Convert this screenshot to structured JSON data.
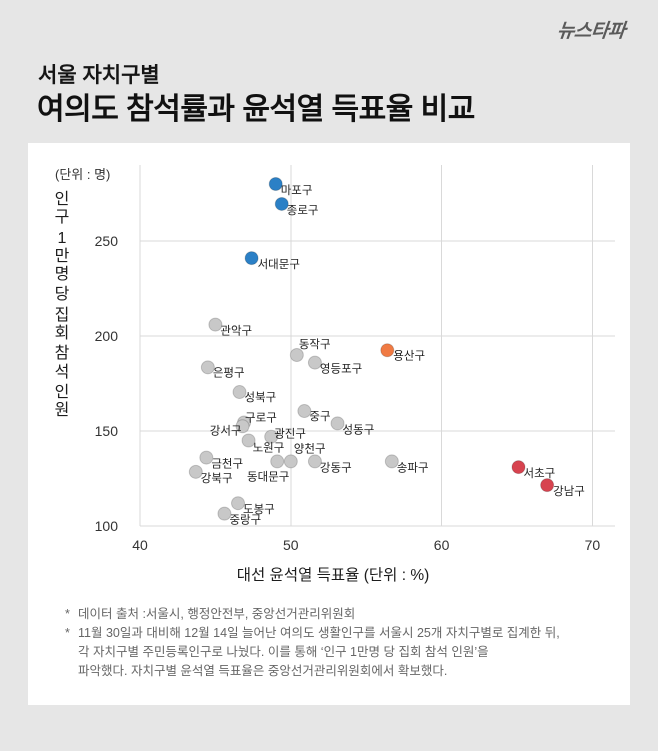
{
  "header": {
    "logo": "뉴스타파"
  },
  "chart_data": {
    "type": "scatter",
    "subtitle": "서울 자치구별",
    "title": "여의도 참석률과 윤석열 득표율 비교",
    "xlabel": "대선 윤석열 득표율 (단위 : %)",
    "ylabel": "인구 1만명 당 집회 참석 인원",
    "yunit": "(단위 : 명)",
    "xlim": [
      40,
      71.5
    ],
    "ylim": [
      100,
      290
    ],
    "xticks": [
      40,
      50,
      60,
      70
    ],
    "yticks": [
      100,
      150,
      200,
      250
    ],
    "grid": true,
    "points": [
      {
        "label": "마포구",
        "x": 49.0,
        "y": 280,
        "color": "#2b80c6"
      },
      {
        "label": "종로구",
        "x": 49.4,
        "y": 269.5,
        "color": "#2b80c6"
      },
      {
        "label": "서대문구",
        "x": 47.4,
        "y": 241,
        "color": "#2b80c6"
      },
      {
        "label": "관악구",
        "x": 45.0,
        "y": 206,
        "color": "#c8c8c8"
      },
      {
        "label": "동작구",
        "x": 50.4,
        "y": 190,
        "color": "#c8c8c8"
      },
      {
        "label": "영등포구",
        "x": 51.6,
        "y": 186,
        "color": "#c8c8c8"
      },
      {
        "label": "용산구",
        "x": 56.4,
        "y": 192.5,
        "color": "#f07a43"
      },
      {
        "label": "은평구",
        "x": 44.5,
        "y": 183.5,
        "color": "#c8c8c8"
      },
      {
        "label": "성북구",
        "x": 46.6,
        "y": 170.5,
        "color": "#c8c8c8"
      },
      {
        "label": "중구",
        "x": 50.9,
        "y": 160.5,
        "color": "#c8c8c8"
      },
      {
        "label": "성동구",
        "x": 53.1,
        "y": 154,
        "color": "#c8c8c8"
      },
      {
        "label": "구로구",
        "x": 46.9,
        "y": 154.5,
        "color": "#c8c8c8"
      },
      {
        "label": "강서구",
        "x": 46.8,
        "y": 152.5,
        "color": "#c8c8c8"
      },
      {
        "label": "광진구",
        "x": 48.7,
        "y": 147,
        "color": "#c8c8c8"
      },
      {
        "label": "노원구",
        "x": 47.2,
        "y": 145,
        "color": "#c8c8c8"
      },
      {
        "label": "양천구",
        "x": 50.0,
        "y": 134,
        "color": "#c8c8c8"
      },
      {
        "label": "동대문구",
        "x": 49.1,
        "y": 134,
        "color": "#c8c8c8"
      },
      {
        "label": "강동구",
        "x": 51.6,
        "y": 134,
        "color": "#c8c8c8"
      },
      {
        "label": "금천구",
        "x": 44.4,
        "y": 136,
        "color": "#c8c8c8"
      },
      {
        "label": "강북구",
        "x": 43.7,
        "y": 128.5,
        "color": "#c8c8c8"
      },
      {
        "label": "송파구",
        "x": 56.7,
        "y": 134,
        "color": "#c8c8c8"
      },
      {
        "label": "서초구",
        "x": 65.1,
        "y": 131,
        "color": "#d7434f"
      },
      {
        "label": "강남구",
        "x": 67.0,
        "y": 121.5,
        "color": "#d7434f"
      },
      {
        "label": "도봉구",
        "x": 46.5,
        "y": 112,
        "color": "#c8c8c8"
      },
      {
        "label": "중랑구",
        "x": 45.6,
        "y": 106.5,
        "color": "#c8c8c8"
      }
    ]
  },
  "notes": [
    {
      "marker": "*",
      "lines": [
        "데이터 출처 :서울시, 행정안전부, 중앙선거관리위원회"
      ]
    },
    {
      "marker": "*",
      "lines": [
        "11월 30일과 대비해 12월 14일 늘어난 여의도 생활인구를 서울시 25개 자치구별로 집계한 뒤,",
        "각 자치구별 주민등록인구로 나눴다. 이를 통해 ‘인구 1만명 당 집회 참석 인원’을",
        "파악했다. 자치구별 윤석열 득표율은 중앙선거관리위원회에서 확보했다."
      ]
    }
  ]
}
